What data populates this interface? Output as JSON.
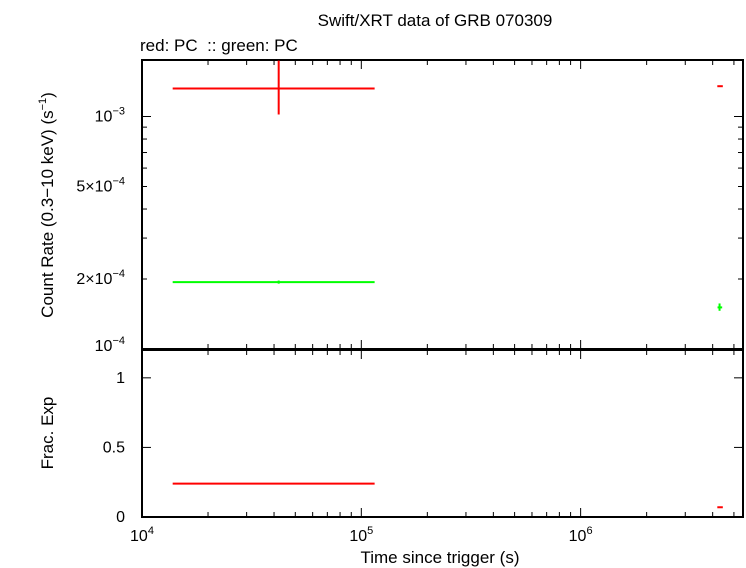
{
  "chart_data": {
    "type": "scatter",
    "title": "Swift/XRT data of GRB 070309",
    "subtitle": "red: PC  :: green: PC",
    "xlabel": "Time since trigger (s)",
    "x_scale": "log",
    "xlim": [
      10000,
      5500000
    ],
    "x_ticks": [
      {
        "value": 10000,
        "base": "10",
        "exp": "4"
      },
      {
        "value": 100000,
        "base": "10",
        "exp": "5"
      },
      {
        "value": 1000000,
        "base": "10",
        "exp": "6"
      }
    ],
    "panels": [
      {
        "ylabel": "Count Rate (0.3−10 keV) (s",
        "ylabel_sup": "−1",
        "ylabel_end": ")",
        "y_scale": "log",
        "ylim": [
          0.0001,
          0.00175
        ],
        "y_ticks": [
          {
            "value": 0.001,
            "mant": "",
            "base": "10",
            "exp": "−3"
          },
          {
            "value": 0.0005,
            "mant": "5×",
            "base": "10",
            "exp": "−4"
          },
          {
            "value": 0.0002,
            "mant": "2×",
            "base": "10",
            "exp": "−4"
          },
          {
            "value": 0.0001,
            "mant": "",
            "base": "10",
            "exp": "−4"
          }
        ],
        "series": [
          {
            "color": "#ff0000",
            "points": [
              {
                "x": 42000,
                "xlo": 13800,
                "xhi": 115000,
                "y": 0.00132,
                "ylo": 0.00102,
                "yhi": 0.00174
              },
              {
                "x": 4300000,
                "xlo": 4200000,
                "xhi": 4450000,
                "y": 0.00135,
                "ylo": 0.00135,
                "yhi": 0.00135
              }
            ]
          },
          {
            "color": "#00ff00",
            "points": [
              {
                "x": 42000,
                "xlo": 13800,
                "xhi": 115000,
                "y": 0.000194,
                "ylo": 0.000191,
                "yhi": 0.000197
              },
              {
                "x": 4300000,
                "xlo": 4210000,
                "xhi": 4420000,
                "y": 0.000151,
                "ylo": 0.000146,
                "yhi": 0.000157
              }
            ]
          }
        ]
      },
      {
        "ylabel": "Frac. Exp",
        "y_scale": "linear",
        "ylim": [
          0,
          1.2
        ],
        "y_ticks": [
          {
            "value": 0,
            "label": "0"
          },
          {
            "value": 0.5,
            "label": "0.5"
          },
          {
            "value": 1,
            "label": "1"
          }
        ],
        "series": [
          {
            "color": "#ff0000",
            "points": [
              {
                "x": 42000,
                "xlo": 13800,
                "xhi": 115000,
                "y": 0.24
              },
              {
                "x": 4300000,
                "xlo": 4200000,
                "xhi": 4450000,
                "y": 0.07
              }
            ]
          }
        ]
      }
    ]
  }
}
